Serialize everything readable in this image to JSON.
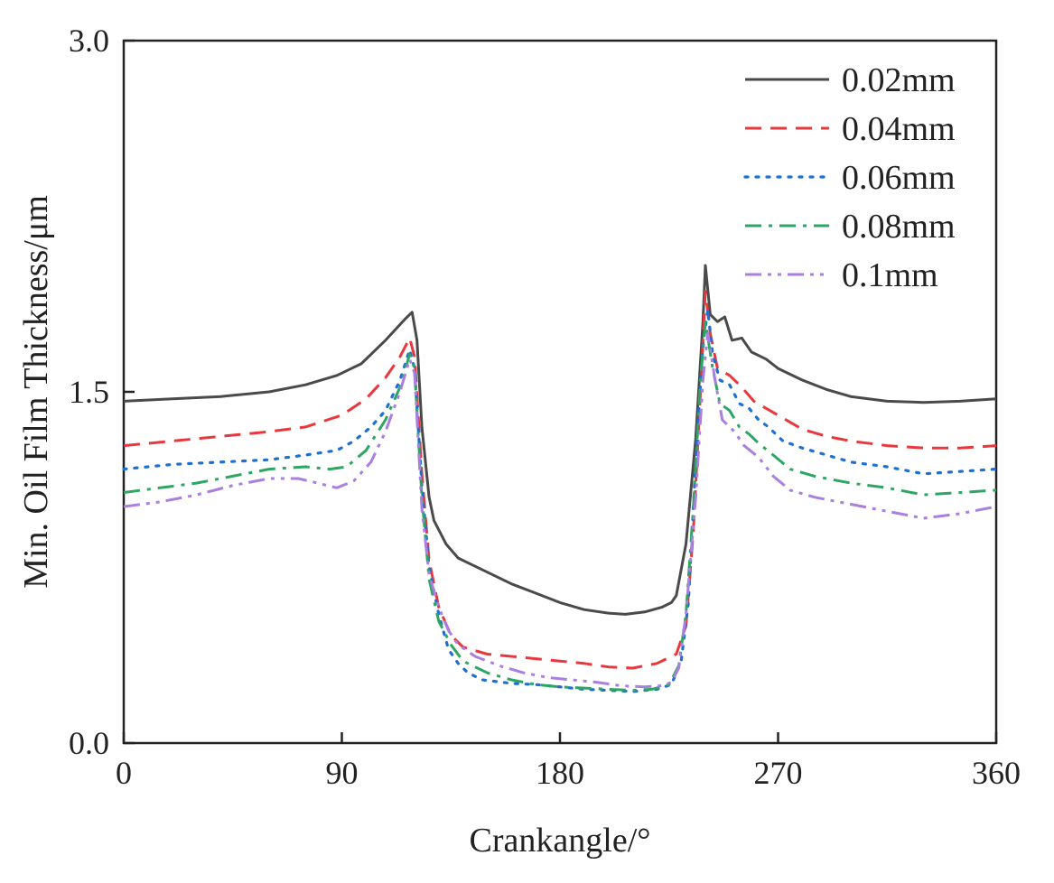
{
  "chart_data": {
    "type": "line",
    "title": "",
    "xlabel": "Crankangle/°",
    "ylabel": "Min. Oil Film Thickness/μm",
    "xlim": [
      0,
      360
    ],
    "ylim": [
      0,
      3.0
    ],
    "xticks": [
      0,
      90,
      180,
      270,
      360
    ],
    "xtick_labels": [
      "0",
      "90",
      "180",
      "270",
      "360"
    ],
    "yticks": [
      0,
      1.5,
      3.0
    ],
    "ytick_labels": [
      "0.0",
      "1.5",
      "3.0"
    ],
    "grid": false,
    "legend_position": "top-right",
    "series": [
      {
        "name": "0.02mm",
        "color": "#4a4a4a",
        "dash": "solid",
        "points": [
          [
            0,
            1.46
          ],
          [
            20,
            1.47
          ],
          [
            40,
            1.48
          ],
          [
            60,
            1.5
          ],
          [
            75,
            1.53
          ],
          [
            88,
            1.57
          ],
          [
            98,
            1.62
          ],
          [
            108,
            1.72
          ],
          [
            116,
            1.81
          ],
          [
            119,
            1.84
          ],
          [
            121,
            1.72
          ],
          [
            123,
            1.35
          ],
          [
            126,
            1.05
          ],
          [
            128,
            0.95
          ],
          [
            133,
            0.85
          ],
          [
            138,
            0.79
          ],
          [
            142,
            0.77
          ],
          [
            150,
            0.73
          ],
          [
            160,
            0.68
          ],
          [
            170,
            0.64
          ],
          [
            180,
            0.6
          ],
          [
            190,
            0.57
          ],
          [
            200,
            0.555
          ],
          [
            207,
            0.55
          ],
          [
            215,
            0.56
          ],
          [
            222,
            0.58
          ],
          [
            226,
            0.6
          ],
          [
            228,
            0.63
          ],
          [
            232,
            0.85
          ],
          [
            236,
            1.3
          ],
          [
            239,
            1.8
          ],
          [
            240,
            2.04
          ],
          [
            242,
            1.83
          ],
          [
            245,
            1.8
          ],
          [
            248,
            1.82
          ],
          [
            251,
            1.72
          ],
          [
            255,
            1.73
          ],
          [
            259,
            1.67
          ],
          [
            265,
            1.64
          ],
          [
            270,
            1.6
          ],
          [
            280,
            1.55
          ],
          [
            290,
            1.51
          ],
          [
            300,
            1.48
          ],
          [
            315,
            1.46
          ],
          [
            330,
            1.455
          ],
          [
            345,
            1.46
          ],
          [
            360,
            1.47
          ]
        ]
      },
      {
        "name": "0.04mm",
        "color": "#e8383d",
        "dash": "dashed",
        "points": [
          [
            0,
            1.27
          ],
          [
            20,
            1.29
          ],
          [
            40,
            1.31
          ],
          [
            60,
            1.33
          ],
          [
            75,
            1.35
          ],
          [
            90,
            1.4
          ],
          [
            100,
            1.47
          ],
          [
            108,
            1.56
          ],
          [
            114,
            1.65
          ],
          [
            118,
            1.73
          ],
          [
            120,
            1.65
          ],
          [
            123,
            1.15
          ],
          [
            126,
            0.78
          ],
          [
            130,
            0.58
          ],
          [
            135,
            0.46
          ],
          [
            140,
            0.41
          ],
          [
            150,
            0.38
          ],
          [
            160,
            0.37
          ],
          [
            170,
            0.36
          ],
          [
            180,
            0.35
          ],
          [
            190,
            0.34
          ],
          [
            200,
            0.325
          ],
          [
            210,
            0.32
          ],
          [
            220,
            0.34
          ],
          [
            228,
            0.38
          ],
          [
            232,
            0.5
          ],
          [
            235,
            0.9
          ],
          [
            238,
            1.5
          ],
          [
            240,
            1.93
          ],
          [
            242,
            1.75
          ],
          [
            245,
            1.6
          ],
          [
            250,
            1.57
          ],
          [
            255,
            1.52
          ],
          [
            260,
            1.46
          ],
          [
            265,
            1.43
          ],
          [
            270,
            1.4
          ],
          [
            280,
            1.34
          ],
          [
            290,
            1.31
          ],
          [
            300,
            1.29
          ],
          [
            315,
            1.27
          ],
          [
            330,
            1.26
          ],
          [
            345,
            1.26
          ],
          [
            360,
            1.27
          ]
        ]
      },
      {
        "name": "0.06mm",
        "color": "#1f6fd1",
        "dash": "dotted",
        "points": [
          [
            0,
            1.17
          ],
          [
            20,
            1.19
          ],
          [
            40,
            1.2
          ],
          [
            60,
            1.21
          ],
          [
            75,
            1.23
          ],
          [
            88,
            1.25
          ],
          [
            95,
            1.29
          ],
          [
            102,
            1.35
          ],
          [
            108,
            1.42
          ],
          [
            114,
            1.55
          ],
          [
            118,
            1.68
          ],
          [
            120,
            1.6
          ],
          [
            123,
            1.1
          ],
          [
            126,
            0.75
          ],
          [
            130,
            0.55
          ],
          [
            134,
            0.4
          ],
          [
            138,
            0.34
          ],
          [
            142,
            0.3
          ],
          [
            148,
            0.27
          ],
          [
            160,
            0.255
          ],
          [
            170,
            0.25
          ],
          [
            180,
            0.24
          ],
          [
            190,
            0.23
          ],
          [
            200,
            0.225
          ],
          [
            210,
            0.22
          ],
          [
            220,
            0.23
          ],
          [
            226,
            0.25
          ],
          [
            230,
            0.35
          ],
          [
            233,
            0.6
          ],
          [
            236,
            1.2
          ],
          [
            239,
            1.7
          ],
          [
            241,
            1.85
          ],
          [
            243,
            1.66
          ],
          [
            246,
            1.55
          ],
          [
            250,
            1.53
          ],
          [
            254,
            1.45
          ],
          [
            258,
            1.43
          ],
          [
            262,
            1.38
          ],
          [
            266,
            1.35
          ],
          [
            272,
            1.29
          ],
          [
            280,
            1.26
          ],
          [
            290,
            1.23
          ],
          [
            300,
            1.2
          ],
          [
            315,
            1.18
          ],
          [
            330,
            1.15
          ],
          [
            345,
            1.16
          ],
          [
            360,
            1.17
          ]
        ]
      },
      {
        "name": "0.08mm",
        "color": "#2ea663",
        "dash": "dashdot",
        "points": [
          [
            0,
            1.07
          ],
          [
            15,
            1.09
          ],
          [
            30,
            1.11
          ],
          [
            45,
            1.14
          ],
          [
            60,
            1.17
          ],
          [
            75,
            1.18
          ],
          [
            85,
            1.17
          ],
          [
            92,
            1.18
          ],
          [
            100,
            1.25
          ],
          [
            108,
            1.38
          ],
          [
            114,
            1.52
          ],
          [
            118,
            1.66
          ],
          [
            120,
            1.6
          ],
          [
            123,
            1.05
          ],
          [
            126,
            0.7
          ],
          [
            130,
            0.52
          ],
          [
            135,
            0.42
          ],
          [
            140,
            0.35
          ],
          [
            150,
            0.3
          ],
          [
            160,
            0.27
          ],
          [
            170,
            0.25
          ],
          [
            180,
            0.24
          ],
          [
            190,
            0.235
          ],
          [
            200,
            0.23
          ],
          [
            210,
            0.225
          ],
          [
            218,
            0.23
          ],
          [
            225,
            0.25
          ],
          [
            229,
            0.33
          ],
          [
            232,
            0.55
          ],
          [
            235,
            1.0
          ],
          [
            238,
            1.55
          ],
          [
            240,
            1.8
          ],
          [
            243,
            1.6
          ],
          [
            246,
            1.45
          ],
          [
            250,
            1.42
          ],
          [
            254,
            1.35
          ],
          [
            258,
            1.32
          ],
          [
            262,
            1.28
          ],
          [
            268,
            1.23
          ],
          [
            275,
            1.17
          ],
          [
            285,
            1.14
          ],
          [
            300,
            1.11
          ],
          [
            315,
            1.09
          ],
          [
            330,
            1.06
          ],
          [
            345,
            1.07
          ],
          [
            360,
            1.08
          ]
        ]
      },
      {
        "name": "0.1mm",
        "color": "#a97fe0",
        "dash": "dashdotdot",
        "points": [
          [
            0,
            1.01
          ],
          [
            15,
            1.03
          ],
          [
            30,
            1.06
          ],
          [
            45,
            1.1
          ],
          [
            60,
            1.13
          ],
          [
            72,
            1.13
          ],
          [
            80,
            1.11
          ],
          [
            88,
            1.09
          ],
          [
            95,
            1.12
          ],
          [
            102,
            1.2
          ],
          [
            108,
            1.33
          ],
          [
            114,
            1.5
          ],
          [
            118,
            1.64
          ],
          [
            120,
            1.58
          ],
          [
            123,
            1.0
          ],
          [
            126,
            0.72
          ],
          [
            130,
            0.58
          ],
          [
            134,
            0.48
          ],
          [
            138,
            0.42
          ],
          [
            145,
            0.37
          ],
          [
            155,
            0.33
          ],
          [
            165,
            0.3
          ],
          [
            175,
            0.28
          ],
          [
            185,
            0.27
          ],
          [
            195,
            0.26
          ],
          [
            205,
            0.245
          ],
          [
            215,
            0.24
          ],
          [
            222,
            0.245
          ],
          [
            226,
            0.26
          ],
          [
            229,
            0.32
          ],
          [
            232,
            0.55
          ],
          [
            236,
            1.05
          ],
          [
            239,
            1.55
          ],
          [
            241,
            1.75
          ],
          [
            244,
            1.55
          ],
          [
            247,
            1.38
          ],
          [
            252,
            1.33
          ],
          [
            256,
            1.27
          ],
          [
            262,
            1.22
          ],
          [
            268,
            1.14
          ],
          [
            275,
            1.08
          ],
          [
            285,
            1.05
          ],
          [
            300,
            1.02
          ],
          [
            315,
            0.99
          ],
          [
            330,
            0.96
          ],
          [
            345,
            0.98
          ],
          [
            360,
            1.01
          ]
        ]
      }
    ]
  }
}
